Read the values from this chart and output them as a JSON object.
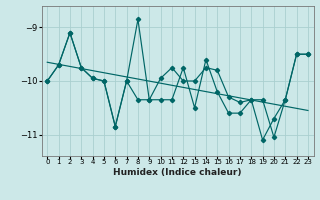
{
  "xlabel": "Humidex (Indice chaleur)",
  "xlim": [
    -0.5,
    23.5
  ],
  "ylim": [
    -11.4,
    -8.6
  ],
  "yticks": [
    -11,
    -10,
    -9
  ],
  "xticks": [
    0,
    1,
    2,
    3,
    4,
    5,
    6,
    7,
    8,
    9,
    10,
    11,
    12,
    13,
    14,
    15,
    16,
    17,
    18,
    19,
    20,
    21,
    22,
    23
  ],
  "bg_color": "#cce8e8",
  "line_color": "#006666",
  "grid_color": "#aacfcf",
  "line1_x": [
    0,
    1,
    2,
    3,
    4,
    5,
    6,
    7,
    8,
    9,
    10,
    11,
    12,
    13,
    14,
    15,
    16,
    17,
    18,
    19,
    20,
    21,
    22,
    23
  ],
  "line1_y": [
    -10.0,
    -9.7,
    -9.1,
    -9.75,
    -9.95,
    -10.0,
    -10.85,
    -10.0,
    -10.35,
    -10.35,
    -9.95,
    -9.75,
    -10.0,
    -10.0,
    -9.75,
    -9.8,
    -10.3,
    -10.4,
    -10.35,
    -10.35,
    -11.05,
    -10.35,
    -9.5,
    -9.5
  ],
  "line2_x": [
    0,
    1,
    2,
    3,
    4,
    5,
    6,
    7,
    8,
    9,
    10,
    11,
    12,
    13,
    14,
    15,
    16,
    17,
    18,
    19,
    20,
    21,
    22,
    23
  ],
  "line2_y": [
    -10.0,
    -9.7,
    -9.1,
    -9.75,
    -9.95,
    -10.0,
    -10.85,
    -10.0,
    -8.85,
    -10.35,
    -10.35,
    -10.35,
    -9.75,
    -10.5,
    -9.6,
    -10.2,
    -10.6,
    -10.6,
    -10.35,
    -11.1,
    -10.7,
    -10.35,
    -9.5,
    -9.5
  ],
  "trend_x": [
    0,
    23
  ],
  "trend_y": [
    -9.65,
    -10.55
  ]
}
